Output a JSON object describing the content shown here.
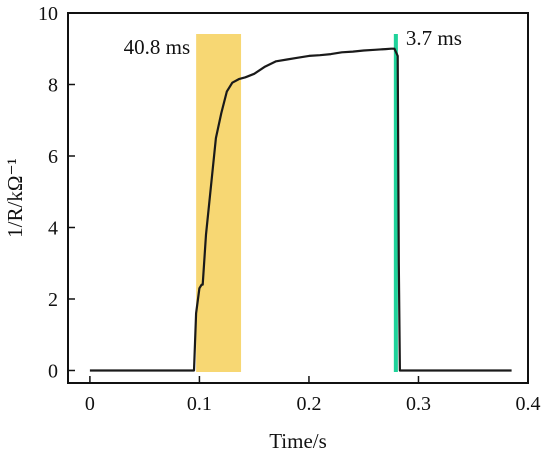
{
  "chart_data": {
    "type": "line",
    "title": "",
    "xlabel": "Time/s",
    "ylabel": "1/R/kΩ⁻¹",
    "xlim": [
      -0.02,
      0.4
    ],
    "ylim": [
      -0.35,
      10
    ],
    "x_ticks": [
      0,
      0.1,
      0.2,
      0.3,
      0.4
    ],
    "x_tick_labels": [
      "0",
      "0.1",
      "0.2",
      "0.3",
      "0.4"
    ],
    "y_ticks": [
      0,
      2,
      4,
      6,
      8,
      10
    ],
    "y_tick_labels": [
      "0",
      "2",
      "4",
      "6",
      "8",
      "10"
    ],
    "grid": false,
    "line_color": "#1a1a1a",
    "series": [
      {
        "x": [
          0.0,
          0.02,
          0.05,
          0.08,
          0.095,
          0.097,
          0.1,
          0.102,
          0.103,
          0.106,
          0.11,
          0.115,
          0.12,
          0.125,
          0.13,
          0.136,
          0.142,
          0.15,
          0.16,
          0.17,
          0.18,
          0.19,
          0.2,
          0.21,
          0.22,
          0.23,
          0.24,
          0.25,
          0.26,
          0.27,
          0.275,
          0.278,
          0.281,
          0.282,
          0.283,
          0.29,
          0.3,
          0.35,
          0.385
        ],
        "y": [
          0,
          0,
          0,
          0,
          0,
          1.6,
          2.3,
          2.4,
          2.4,
          3.8,
          5.0,
          6.5,
          7.2,
          7.8,
          8.05,
          8.15,
          8.2,
          8.3,
          8.5,
          8.65,
          8.7,
          8.75,
          8.8,
          8.82,
          8.85,
          8.9,
          8.92,
          8.95,
          8.97,
          8.99,
          9.0,
          9.0,
          8.8,
          3.0,
          0,
          0,
          0,
          0,
          0
        ]
      }
    ],
    "annotations": [
      {
        "label": "40.8 ms",
        "x_start": 0.097,
        "x_end": 0.138,
        "color": "#f7d773"
      },
      {
        "label": "3.7 ms",
        "x_start": 0.2775,
        "x_end": 0.2812,
        "color": "#1fd29a"
      }
    ]
  }
}
